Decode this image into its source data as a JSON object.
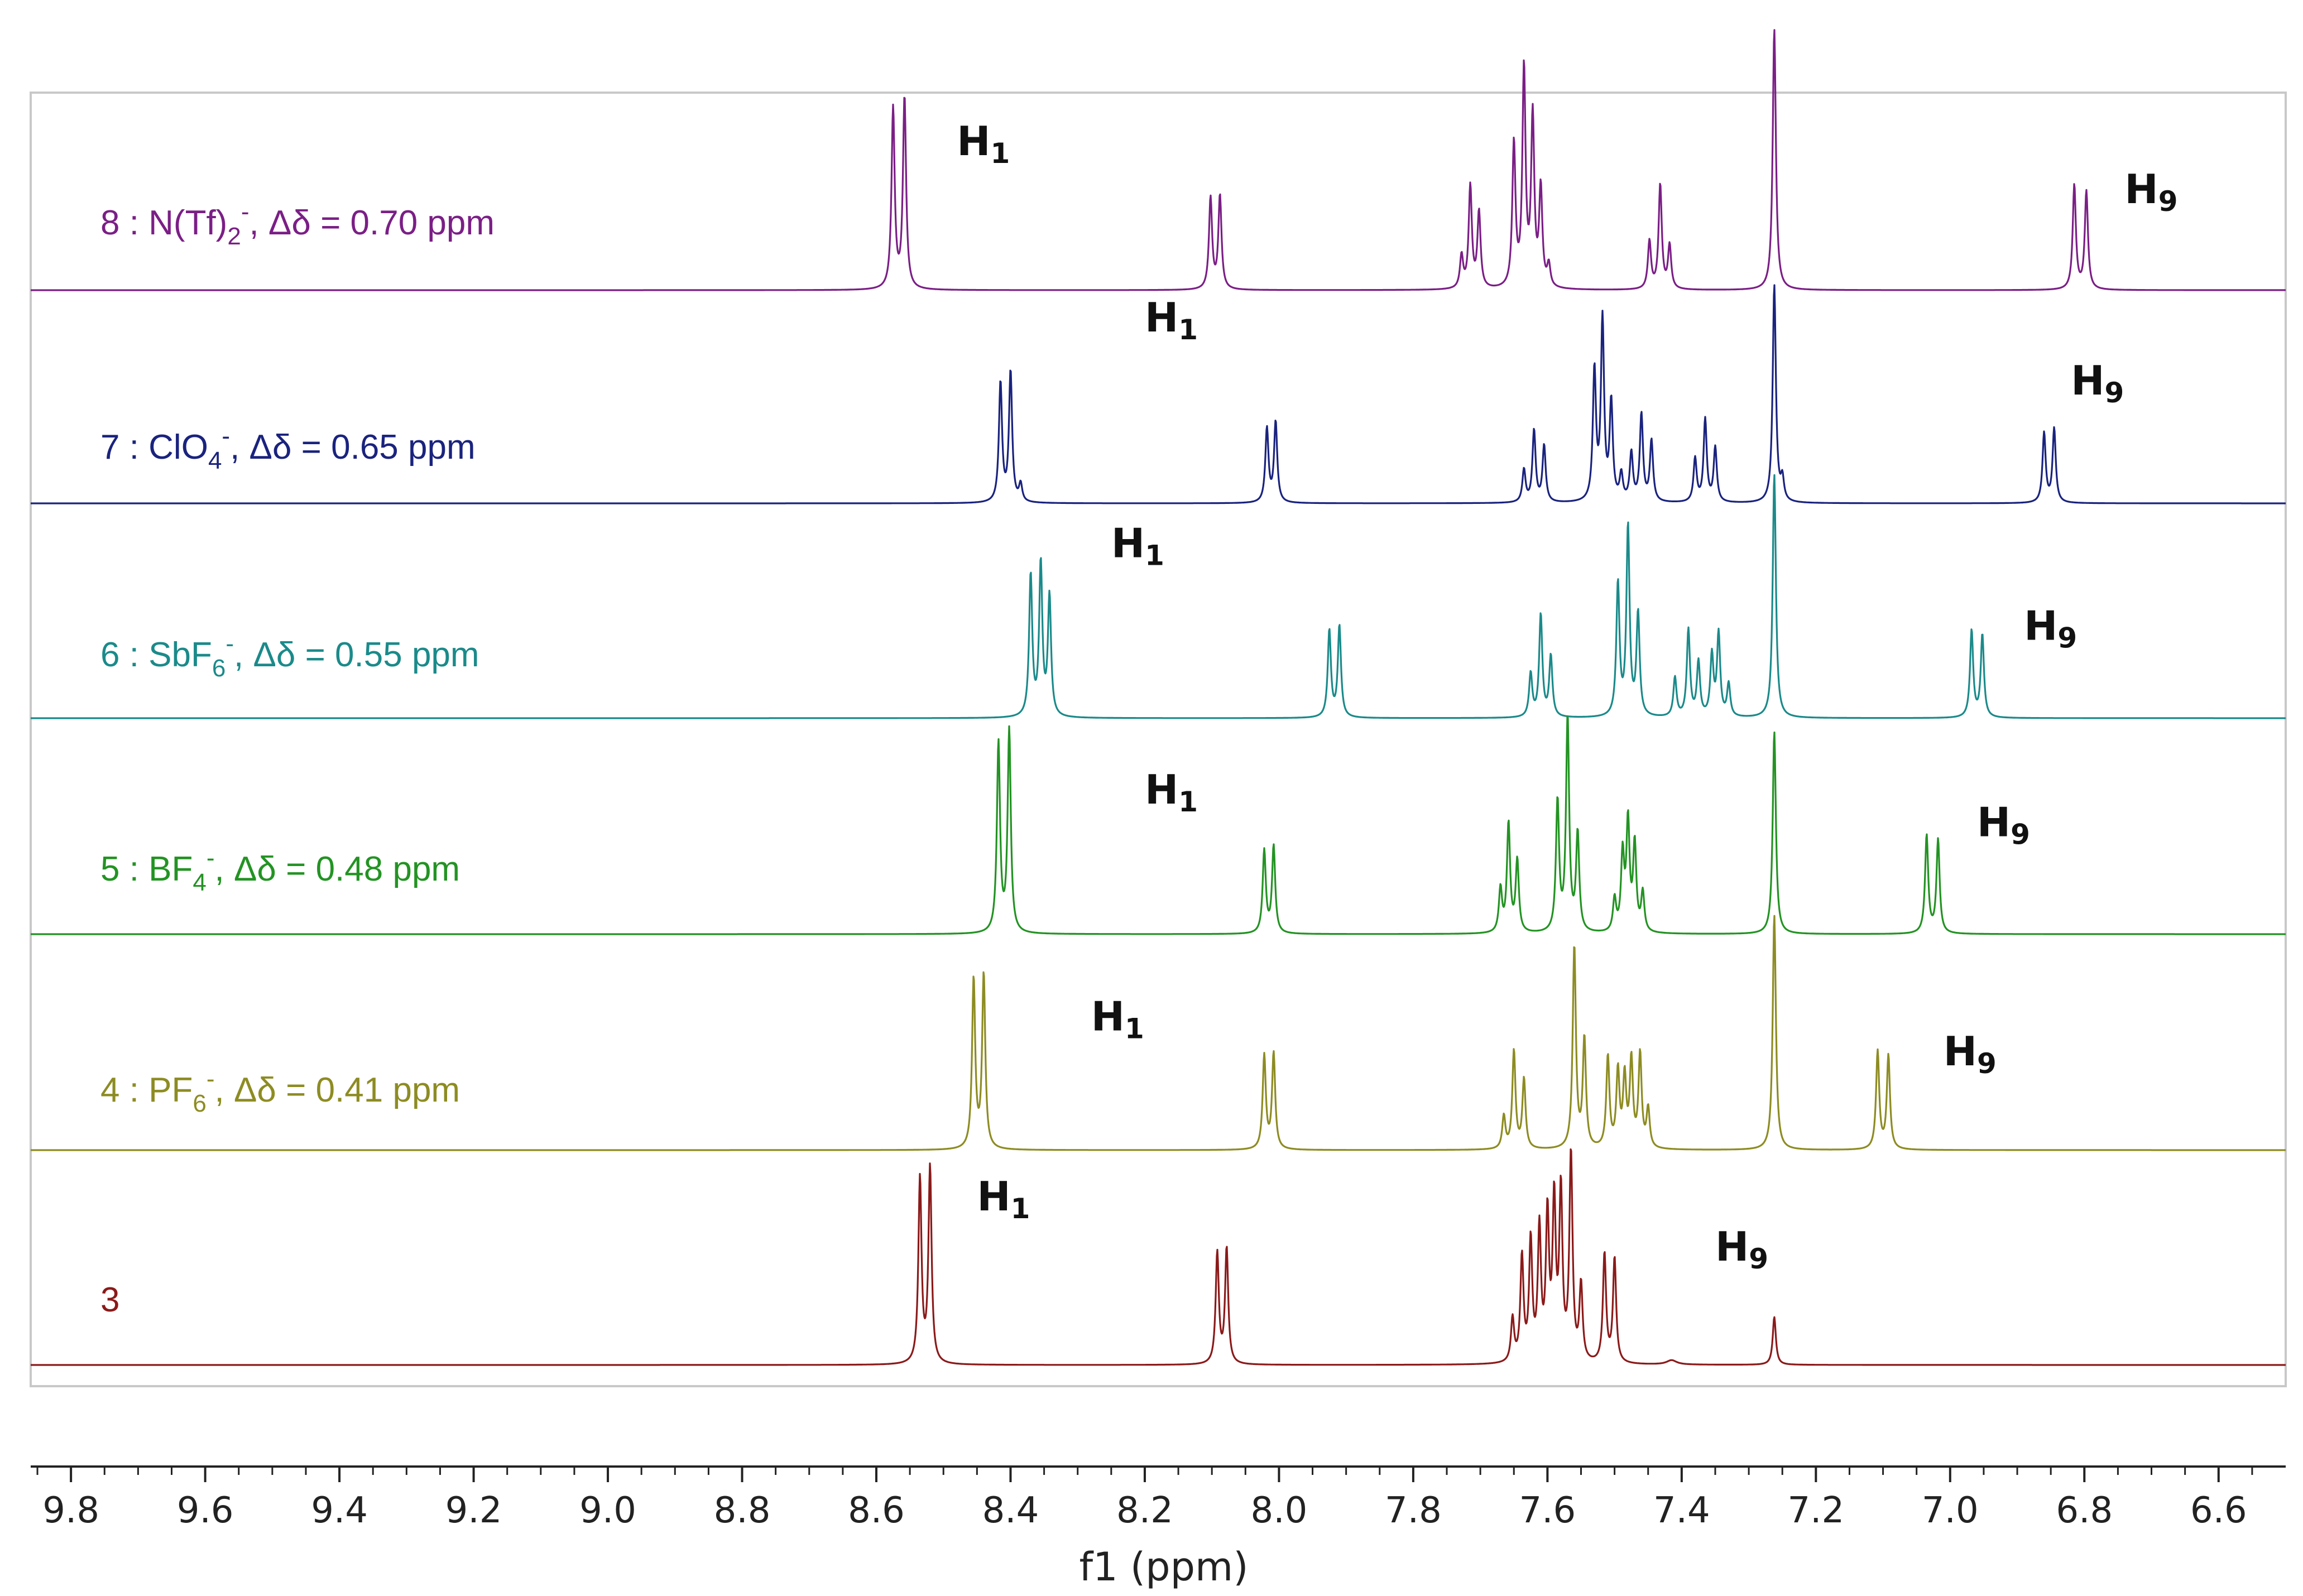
{
  "chart_data": {
    "type": "line",
    "title": "",
    "xlabel": "f1 (ppm)",
    "ylabel": "",
    "x_axis": {
      "reversed": true,
      "xlim": [
        9.86,
        6.5
      ],
      "ticks": [
        9.8,
        9.6,
        9.4,
        9.2,
        9.0,
        8.8,
        8.6,
        8.4,
        8.2,
        8.0,
        7.8,
        7.6,
        7.4,
        7.2,
        7.0,
        6.8,
        6.6
      ],
      "tick_labels": [
        "9.8",
        "9.6",
        "9.4",
        "9.2",
        "9.0",
        "8.8",
        "8.6",
        "8.4",
        "8.2",
        "8.0",
        "7.8",
        "7.6",
        "7.4",
        "7.2",
        "7.0",
        "6.8",
        "6.6"
      ],
      "minor_step": 0.05
    },
    "legend_placement": "left, one label per stacked spectrum",
    "series": [
      {
        "name": "8 : N(Tf)2-, Δδ = 0.70 ppm",
        "label": {
          "prefix": "8 : N(Tf)",
          "sub": "2",
          "sup": "-",
          "suffix": ", Δδ = 0.70 ppm"
        },
        "color": "#7b1f86",
        "peaks": [
          [
            8.575,
            0.83
          ],
          [
            8.558,
            0.88
          ],
          [
            8.102,
            0.42
          ],
          [
            8.088,
            0.43
          ],
          [
            7.728,
            0.15
          ],
          [
            7.715,
            0.47
          ],
          [
            7.702,
            0.35
          ],
          [
            7.65,
            0.66
          ],
          [
            7.635,
            1.0
          ],
          [
            7.622,
            0.78
          ],
          [
            7.61,
            0.45
          ],
          [
            7.598,
            0.1
          ],
          [
            7.448,
            0.22
          ],
          [
            7.432,
            0.48
          ],
          [
            7.418,
            0.2
          ],
          [
            7.262,
            1.2
          ],
          [
            6.815,
            0.48
          ],
          [
            6.797,
            0.45
          ]
        ],
        "annotations": [
          {
            "text": "H",
            "sub": "1",
            "ppm": 8.48,
            "rise": 0.62
          },
          {
            "text": "H",
            "sub": "9",
            "ppm": 6.74,
            "rise": 0.4
          }
        ]
      },
      {
        "name": "7 : ClO4-, Δδ = 0.65 ppm",
        "label": {
          "prefix": "7 : ClO",
          "sub": "4",
          "sup": "-",
          "suffix": ", Δδ = 0.65 ppm"
        },
        "color": "#1a237e",
        "peaks": [
          [
            8.415,
            0.55
          ],
          [
            8.4,
            0.6
          ],
          [
            8.385,
            0.08
          ],
          [
            8.018,
            0.34
          ],
          [
            8.005,
            0.37
          ],
          [
            7.635,
            0.15
          ],
          [
            7.62,
            0.33
          ],
          [
            7.605,
            0.26
          ],
          [
            7.53,
            0.6
          ],
          [
            7.518,
            0.83
          ],
          [
            7.505,
            0.45
          ],
          [
            7.49,
            0.12
          ],
          [
            7.475,
            0.22
          ],
          [
            7.46,
            0.4
          ],
          [
            7.445,
            0.28
          ],
          [
            7.38,
            0.2
          ],
          [
            7.365,
            0.38
          ],
          [
            7.35,
            0.25
          ],
          [
            7.262,
            1.0
          ],
          [
            7.25,
            0.1
          ],
          [
            6.86,
            0.32
          ],
          [
            6.845,
            0.34
          ]
        ],
        "annotations": [
          {
            "text": "H",
            "sub": "1",
            "ppm": 8.2,
            "rise": 0.79
          },
          {
            "text": "H",
            "sub": "9",
            "ppm": 6.82,
            "rise": 0.5
          }
        ]
      },
      {
        "name": "6 : SbF6-, Δδ = 0.55 ppm",
        "label": {
          "prefix": "6 : SbF",
          "sub": "6",
          "sup": "-",
          "suffix": ", Δδ = 0.55 ppm"
        },
        "color": "#1b8a8a",
        "peaks": [
          [
            8.37,
            0.65
          ],
          [
            8.355,
            0.7
          ],
          [
            8.342,
            0.55
          ],
          [
            7.925,
            0.4
          ],
          [
            7.91,
            0.42
          ],
          [
            7.625,
            0.2
          ],
          [
            7.61,
            0.47
          ],
          [
            7.595,
            0.28
          ],
          [
            7.495,
            0.61
          ],
          [
            7.48,
            0.87
          ],
          [
            7.465,
            0.47
          ],
          [
            7.41,
            0.18
          ],
          [
            7.39,
            0.4
          ],
          [
            7.375,
            0.25
          ],
          [
            7.355,
            0.28
          ],
          [
            7.345,
            0.38
          ],
          [
            7.33,
            0.15
          ],
          [
            7.262,
            1.12
          ],
          [
            6.968,
            0.4
          ],
          [
            6.952,
            0.38
          ]
        ],
        "annotations": [
          {
            "text": "H",
            "sub": "1",
            "ppm": 8.25,
            "rise": 0.74
          },
          {
            "text": "H",
            "sub": "9",
            "ppm": 6.89,
            "rise": 0.36
          }
        ]
      },
      {
        "name": "5 : BF4-, Δδ = 0.48 ppm",
        "label": {
          "prefix": "5 : BF",
          "sub": "4",
          "sup": "-",
          "suffix": ", Δδ = 0.48 ppm"
        },
        "color": "#239323",
        "peaks": [
          [
            8.418,
            0.87
          ],
          [
            8.402,
            0.93
          ],
          [
            8.022,
            0.38
          ],
          [
            8.008,
            0.4
          ],
          [
            7.67,
            0.2
          ],
          [
            7.658,
            0.5
          ],
          [
            7.645,
            0.33
          ],
          [
            7.585,
            0.6
          ],
          [
            7.57,
            0.98
          ],
          [
            7.555,
            0.45
          ],
          [
            7.5,
            0.15
          ],
          [
            7.488,
            0.35
          ],
          [
            7.48,
            0.5
          ],
          [
            7.47,
            0.4
          ],
          [
            7.458,
            0.18
          ],
          [
            7.262,
            0.93
          ],
          [
            7.035,
            0.45
          ],
          [
            7.018,
            0.43
          ]
        ],
        "annotations": [
          {
            "text": "H",
            "sub": "1",
            "ppm": 8.2,
            "rise": 0.6
          },
          {
            "text": "H",
            "sub": "9",
            "ppm": 6.96,
            "rise": 0.45
          }
        ]
      },
      {
        "name": "4 : PF6-, Δδ = 0.41 ppm",
        "label": {
          "prefix": "4 : PF",
          "sub": "6",
          "sup": "-",
          "suffix": ", Δδ = 0.41 ppm"
        },
        "color": "#8d8c22",
        "peaks": [
          [
            8.455,
            0.78
          ],
          [
            8.44,
            0.8
          ],
          [
            8.022,
            0.43
          ],
          [
            8.008,
            0.44
          ],
          [
            7.665,
            0.15
          ],
          [
            7.65,
            0.45
          ],
          [
            7.635,
            0.32
          ],
          [
            7.56,
            0.93
          ],
          [
            7.545,
            0.5
          ],
          [
            7.51,
            0.42
          ],
          [
            7.495,
            0.35
          ],
          [
            7.485,
            0.32
          ],
          [
            7.475,
            0.4
          ],
          [
            7.462,
            0.43
          ],
          [
            7.45,
            0.18
          ],
          [
            7.262,
            1.08
          ],
          [
            7.108,
            0.45
          ],
          [
            7.092,
            0.43
          ]
        ],
        "annotations": [
          {
            "text": "H",
            "sub": "1",
            "ppm": 8.28,
            "rise": 0.55
          },
          {
            "text": "H",
            "sub": "9",
            "ppm": 7.01,
            "rise": 0.39
          }
        ]
      },
      {
        "name": "3",
        "label": {
          "prefix": "3",
          "sub": "",
          "sup": "",
          "suffix": ""
        },
        "color": "#8b1a1a",
        "peaks": [
          [
            8.535,
            0.85
          ],
          [
            8.52,
            0.9
          ],
          [
            8.092,
            0.51
          ],
          [
            8.078,
            0.53
          ],
          [
            7.652,
            0.2
          ],
          [
            7.638,
            0.48
          ],
          [
            7.625,
            0.55
          ],
          [
            7.612,
            0.6
          ],
          [
            7.6,
            0.66
          ],
          [
            7.59,
            0.72
          ],
          [
            7.58,
            0.77
          ],
          [
            7.565,
            0.95
          ],
          [
            7.55,
            0.35
          ],
          [
            7.515,
            0.5
          ],
          [
            7.5,
            0.48
          ],
          [
            7.415,
            0.02
          ],
          [
            7.262,
            0.22
          ]
        ],
        "annotations": [
          {
            "text": "H",
            "sub": "1",
            "ppm": 8.45,
            "rise": 0.71
          },
          {
            "text": "H",
            "sub": "9",
            "ppm": 7.35,
            "rise": 0.48
          }
        ]
      }
    ]
  }
}
